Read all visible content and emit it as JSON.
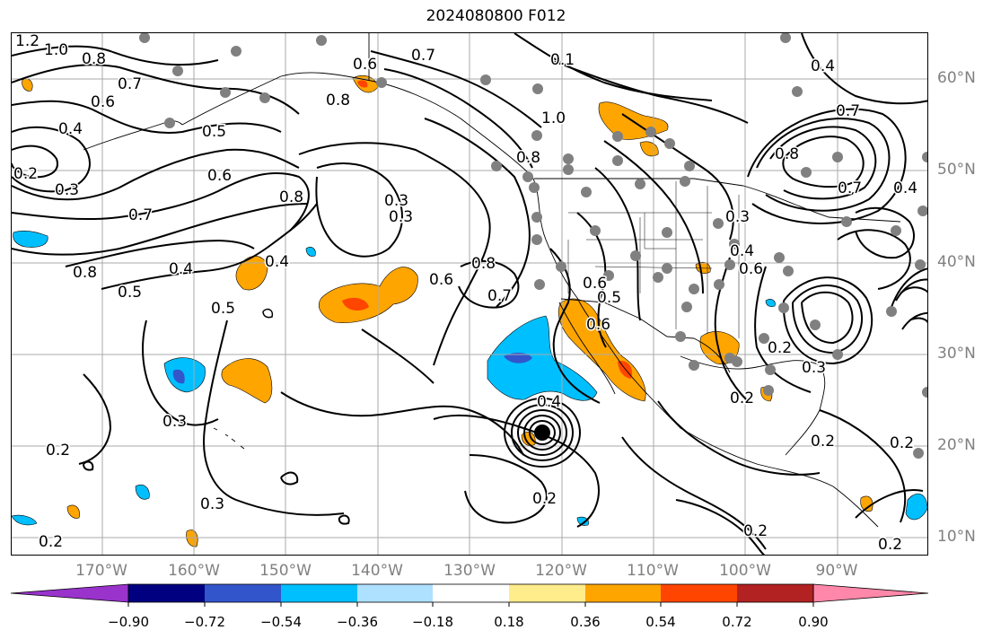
{
  "title": "2024080800 F012",
  "map": {
    "projection": "cylindrical",
    "lon_range": [
      -180,
      -80
    ],
    "lat_range": [
      8,
      65
    ],
    "gridlines": true,
    "contour_color": "#000000",
    "station_marker_color": "#808080",
    "contour_labels": [
      {
        "text": "1.2"
      },
      {
        "text": "1.0"
      },
      {
        "text": "0.8"
      },
      {
        "text": "0.7"
      },
      {
        "text": "0.6"
      },
      {
        "text": "0.5"
      },
      {
        "text": "0.4"
      },
      {
        "text": "0.3"
      },
      {
        "text": "0.2"
      },
      {
        "text": "0.6"
      },
      {
        "text": "0.7"
      },
      {
        "text": "0.8"
      },
      {
        "text": "0.4"
      },
      {
        "text": "0.5"
      },
      {
        "text": "0.8"
      },
      {
        "text": "0.3"
      },
      {
        "text": "0.4"
      },
      {
        "text": "0.5"
      },
      {
        "text": "0.8"
      },
      {
        "text": "0.3"
      },
      {
        "text": "0.6"
      },
      {
        "text": "0.7"
      },
      {
        "text": "0.8"
      },
      {
        "text": "0.6"
      },
      {
        "text": "0.7"
      },
      {
        "text": "0.3"
      },
      {
        "text": "0.2"
      },
      {
        "text": "0.2"
      },
      {
        "text": "0.3"
      },
      {
        "text": "0.2"
      },
      {
        "text": "0.1"
      },
      {
        "text": "1.0"
      },
      {
        "text": "0.8"
      },
      {
        "text": "0.8"
      },
      {
        "text": "0.3"
      },
      {
        "text": "0.7"
      },
      {
        "text": "0.6"
      },
      {
        "text": "0.4"
      },
      {
        "text": "0.2"
      },
      {
        "text": "0.3"
      },
      {
        "text": "0.2"
      },
      {
        "text": "0.2"
      },
      {
        "text": "0.2"
      },
      {
        "text": "0.4"
      },
      {
        "text": "0.7"
      },
      {
        "text": "0.4"
      },
      {
        "text": "0.2"
      },
      {
        "text": "0.2"
      },
      {
        "text": "0.6"
      },
      {
        "text": "0.5"
      },
      {
        "text": "0.6"
      },
      {
        "text": "0.4"
      }
    ]
  },
  "lon_labels": [
    "170°W",
    "160°W",
    "150°W",
    "140°W",
    "130°W",
    "120°W",
    "110°W",
    "100°W",
    "90°W"
  ],
  "lat_labels": [
    "60°N",
    "50°N",
    "40°N",
    "30°N",
    "20°N",
    "10°N"
  ],
  "colorbar": {
    "colors": [
      "#9933cc",
      "#000080",
      "#3355cc",
      "#00bfff",
      "#aee0ff",
      "#ffffff",
      "#ffec8b",
      "#ffa500",
      "#ff4500",
      "#b22222",
      "#ff88aa"
    ],
    "ticks": [
      "−0.90",
      "−0.72",
      "−0.54",
      "−0.36",
      "−0.18",
      "0.18",
      "0.36",
      "0.54",
      "0.72",
      "0.90"
    ]
  }
}
